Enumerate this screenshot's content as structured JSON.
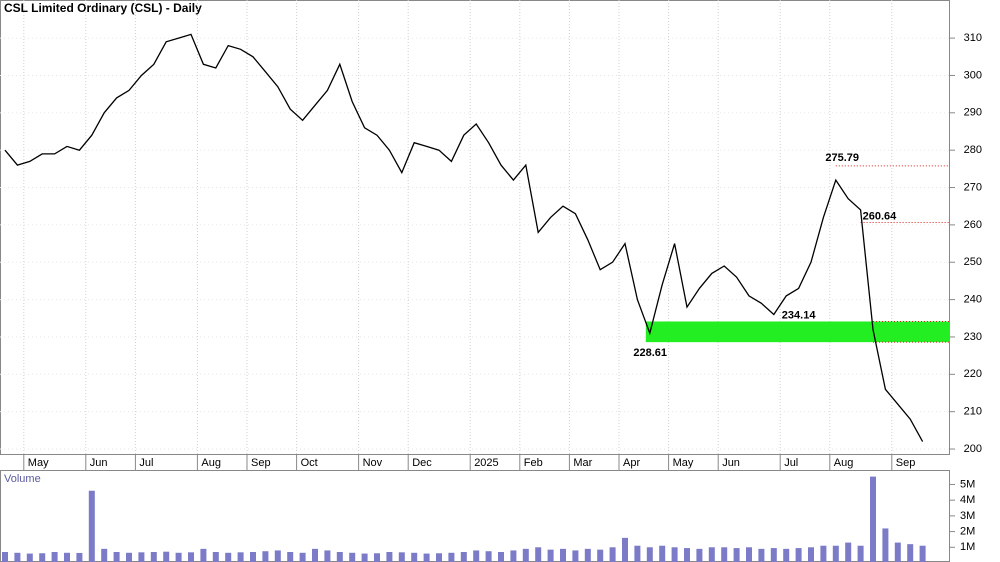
{
  "chart_data": [
    {
      "type": "line",
      "title": "CSL Limited Ordinary (CSL) - Daily",
      "categories": [
        null,
        null,
        "May",
        null,
        null,
        null,
        null,
        "Jun",
        null,
        null,
        null,
        "Jul",
        null,
        null,
        null,
        null,
        "Aug",
        null,
        null,
        null,
        "Sep",
        null,
        null,
        null,
        "Oct",
        null,
        null,
        null,
        null,
        "Nov",
        null,
        null,
        null,
        "Dec",
        null,
        null,
        null,
        null,
        "2025",
        null,
        null,
        null,
        "Feb",
        null,
        null,
        null,
        "Mar",
        null,
        null,
        null,
        "Apr",
        null,
        null,
        null,
        "May",
        null,
        null,
        null,
        "Jun",
        null,
        null,
        null,
        null,
        "Jul",
        null,
        null,
        null,
        "Aug",
        null,
        null,
        null,
        null,
        "Sep",
        null,
        null
      ],
      "series": [
        {
          "name": "CSL",
          "color": "#000000",
          "values": [
            280,
            276,
            277,
            279,
            279,
            281,
            280,
            284,
            290,
            294,
            296,
            300,
            303,
            309,
            310,
            311,
            303,
            302,
            308,
            307,
            305,
            301,
            297,
            291,
            288,
            292,
            296,
            303,
            293,
            286,
            284,
            280,
            274,
            282,
            281,
            280,
            277,
            284,
            287,
            282,
            276,
            272,
            276,
            258,
            262,
            265,
            263,
            256,
            248,
            250,
            255,
            240,
            231,
            244,
            255,
            238,
            243,
            247,
            249,
            246,
            241,
            239,
            236,
            241,
            243,
            250,
            262,
            272,
            267,
            264,
            232,
            216,
            212,
            208,
            202
          ]
        }
      ],
      "ylim": [
        198.4,
        320.2
      ],
      "yticks": [
        200,
        210,
        220,
        230,
        240,
        250,
        260,
        270,
        280,
        290,
        300,
        310
      ],
      "annotations": [
        275.79,
        260.64,
        234.14,
        228.61
      ],
      "zone_color": "#22ee22",
      "level_color": "#dd2222"
    },
    {
      "type": "bar",
      "title": "Volume",
      "color": "#7b7bc8",
      "values": [
        700000,
        650000,
        600000,
        620000,
        700000,
        650000,
        640000,
        4600000,
        900000,
        700000,
        650000,
        680000,
        700000,
        720000,
        650000,
        680000,
        900000,
        700000,
        650000,
        680000,
        700000,
        750000,
        800000,
        700000,
        650000,
        900000,
        800000,
        700000,
        650000,
        600000,
        620000,
        700000,
        680000,
        650000,
        600000,
        620000,
        650000,
        700000,
        800000,
        750000,
        700000,
        800000,
        900000,
        1000000,
        850000,
        900000,
        800000,
        900000,
        850000,
        1000000,
        1600000,
        1100000,
        1000000,
        1100000,
        1000000,
        950000,
        900000,
        1000000,
        1000000,
        950000,
        1000000,
        900000,
        950000,
        900000,
        950000,
        1000000,
        1100000,
        1100000,
        1300000,
        1100000,
        5500000,
        2200000,
        1300000,
        1200000,
        1100000
      ],
      "ylim": [
        0,
        5920000
      ],
      "yticks": [
        {
          "value": 1000000,
          "label": "1M"
        },
        {
          "value": 2000000,
          "label": "2M"
        },
        {
          "value": 3000000,
          "label": "3M"
        },
        {
          "value": 4000000,
          "label": "4M"
        },
        {
          "value": 5000000,
          "label": "5M"
        }
      ]
    }
  ]
}
